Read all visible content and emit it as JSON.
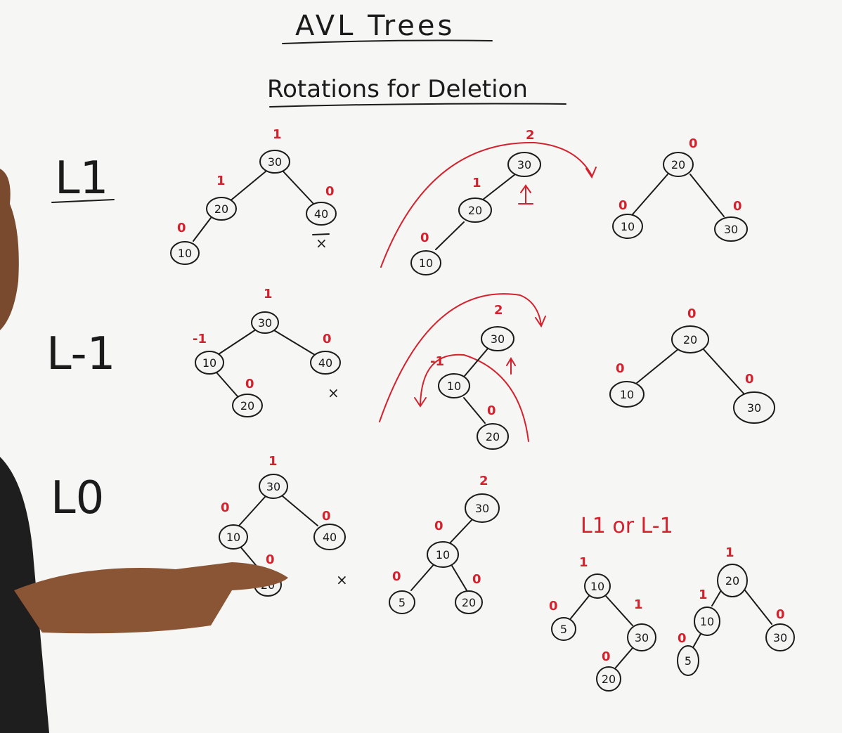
{
  "title": "AVL Trees",
  "subtitle": "Rotations for Deletion",
  "rows": [
    {
      "label": "L1"
    },
    {
      "label": "L-1"
    },
    {
      "label": "L0"
    }
  ],
  "deleted_marker": "×",
  "l0_note": "L1 or L-1",
  "diagrams": {
    "l1_before": {
      "root": "30",
      "left": "20",
      "right": "40",
      "leftleft": "10",
      "bf_root": "1",
      "bf_left": "1",
      "bf_right": "0",
      "bf_leftleft": "0"
    },
    "l1_mid": {
      "root": "30",
      "left": "20",
      "leftleft": "10",
      "bf_root": "2",
      "bf_left": "1",
      "bf_leftleft": "0"
    },
    "l1_after": {
      "root": "20",
      "left": "10",
      "right": "30",
      "bf_root": "0",
      "bf_left": "0",
      "bf_right": "0"
    },
    "lm1_before": {
      "root": "30",
      "left": "10",
      "right": "40",
      "leftright": "20",
      "bf_root": "1",
      "bf_left": "-1",
      "bf_right": "0",
      "bf_leftright": "0"
    },
    "lm1_mid": {
      "root": "30",
      "left": "10",
      "leftright": "20",
      "bf_root": "2",
      "bf_left": "-1",
      "bf_leftright": "0"
    },
    "lm1_after": {
      "root": "20",
      "left": "10",
      "right": "30",
      "bf_root": "0",
      "bf_left": "0",
      "bf_right": "0"
    },
    "l0_before": {
      "root": "30",
      "left": "10",
      "right": "40",
      "leftright": "20",
      "bf_root": "1",
      "bf_left": "0",
      "bf_right": "0",
      "bf_leftright": "0"
    },
    "l0_mid": {
      "root": "30",
      "left": "10",
      "leftleft": "5",
      "leftright": "20",
      "bf_root": "2",
      "bf_left": "0",
      "bf_leftleft": "0",
      "bf_leftright": "0"
    },
    "l0_opt1": {
      "root": "10",
      "left": "5",
      "right": "30",
      "rightleft": "20",
      "bf_root": "1",
      "bf_left": "0",
      "bf_right": "1",
      "bf_rightleft": "0"
    },
    "l0_opt2": {
      "root": "20",
      "left": "10",
      "right": "30",
      "leftleft": "5",
      "bf_root": "1",
      "bf_left": "1",
      "bf_right": "0",
      "bf_leftleft": "0"
    }
  }
}
